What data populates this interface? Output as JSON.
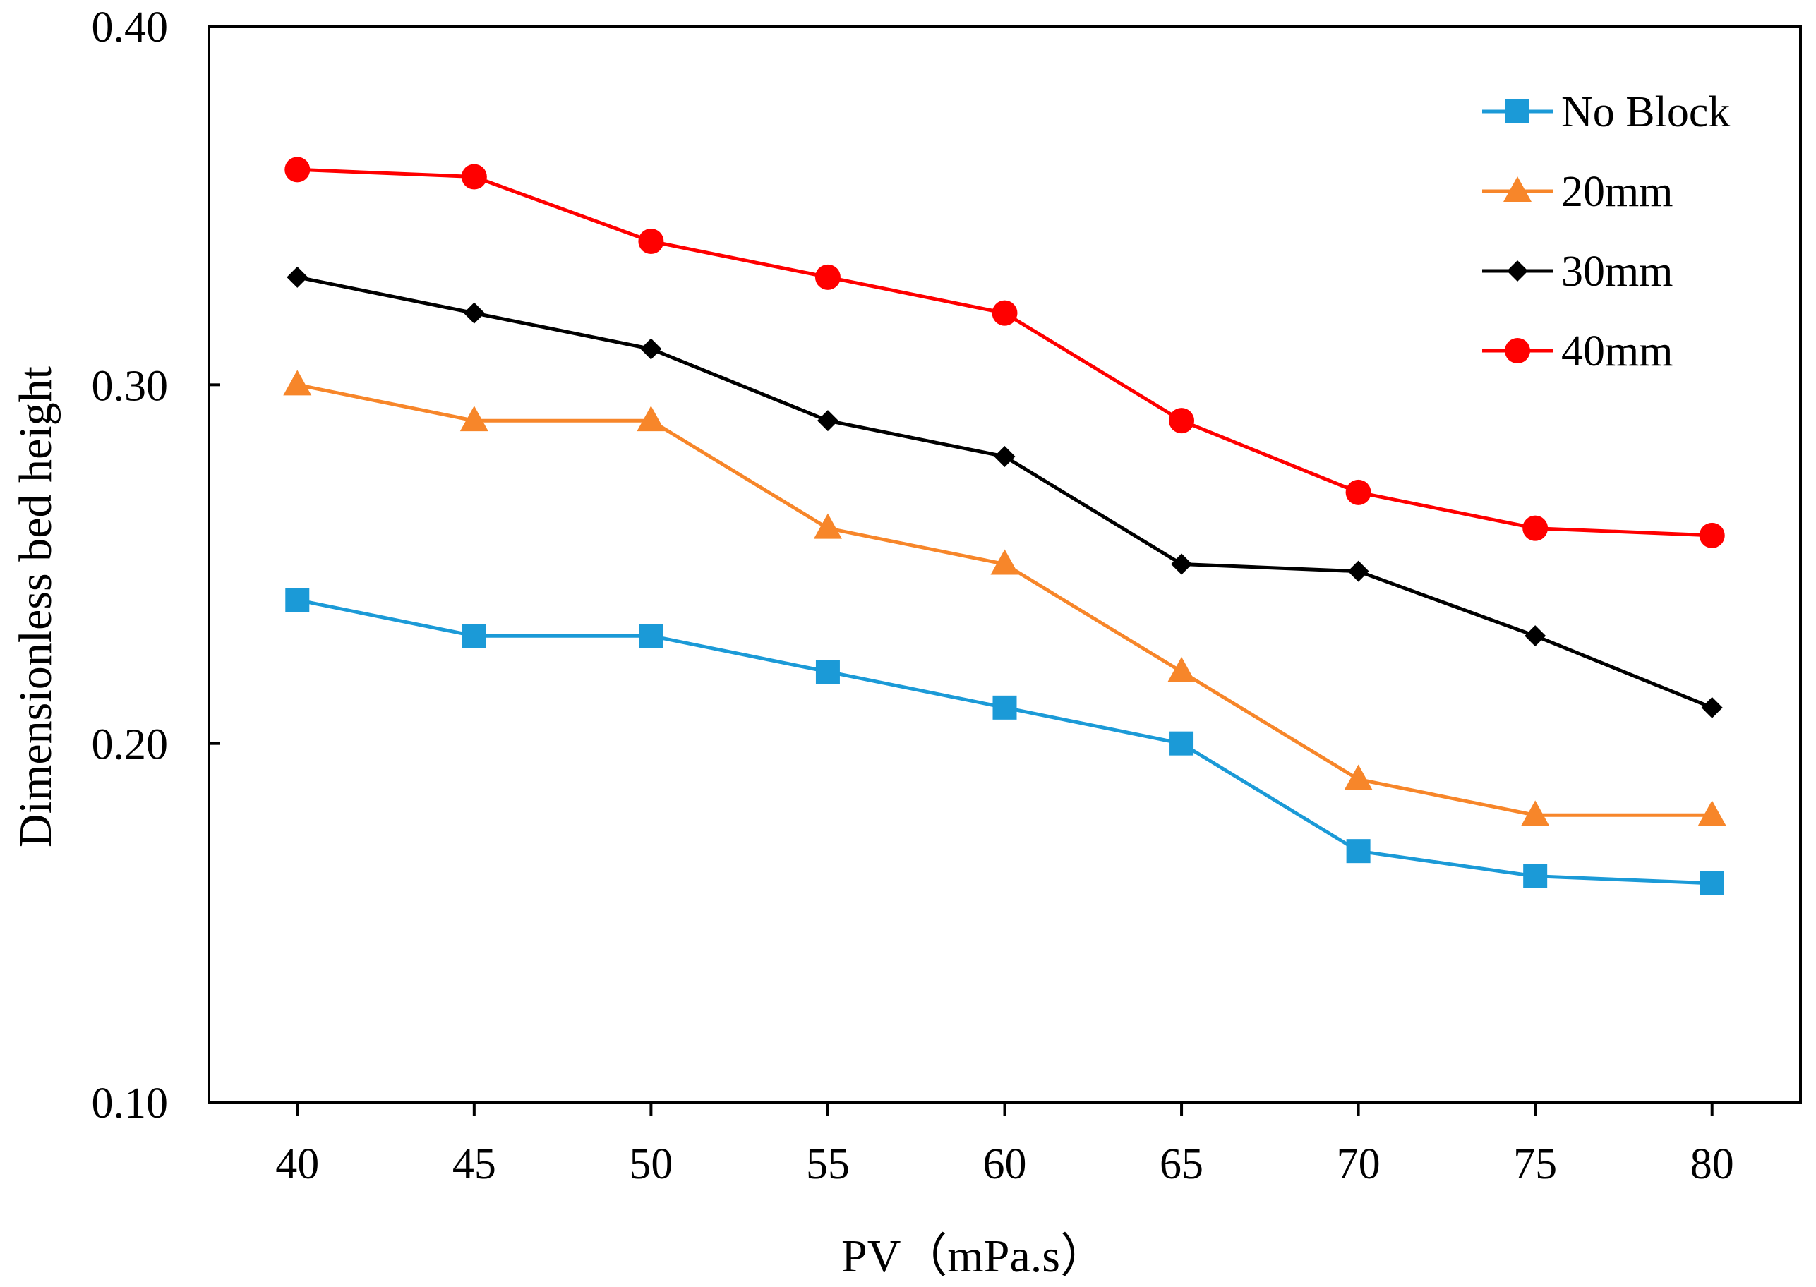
{
  "chart_data": {
    "type": "line",
    "title": "",
    "xlabel": "PV（mPa.s）",
    "ylabel": "Dimensionless bed height",
    "x": [
      40,
      45,
      50,
      55,
      60,
      65,
      70,
      75,
      80
    ],
    "x_tick_labels": [
      "40",
      "45",
      "50",
      "55",
      "60",
      "65",
      "70",
      "75",
      "80"
    ],
    "xlim": [
      37.5,
      82.5
    ],
    "ylim": [
      0.1,
      0.4
    ],
    "y_ticks": [
      0.1,
      0.2,
      0.3,
      0.4
    ],
    "y_tick_labels": [
      "0.10",
      "0.20",
      "0.30",
      "0.40"
    ],
    "grid": false,
    "legend_position": "top-right",
    "series": [
      {
        "name": "No Block",
        "color": "#1B9AD7",
        "marker": "square",
        "values": [
          0.24,
          0.23,
          0.23,
          0.22,
          0.21,
          0.2,
          0.17,
          0.163,
          0.161
        ]
      },
      {
        "name": "20mm",
        "color": "#F7862A",
        "marker": "triangle",
        "values": [
          0.3,
          0.29,
          0.29,
          0.26,
          0.25,
          0.22,
          0.19,
          0.18,
          0.18
        ]
      },
      {
        "name": "30mm",
        "color": "#000000",
        "marker": "diamond",
        "values": [
          0.33,
          0.32,
          0.31,
          0.29,
          0.28,
          0.25,
          0.248,
          0.23,
          0.21
        ]
      },
      {
        "name": "40mm",
        "color": "#FF0000",
        "marker": "circle",
        "values": [
          0.36,
          0.358,
          0.34,
          0.33,
          0.32,
          0.29,
          0.27,
          0.26,
          0.258
        ]
      }
    ]
  }
}
